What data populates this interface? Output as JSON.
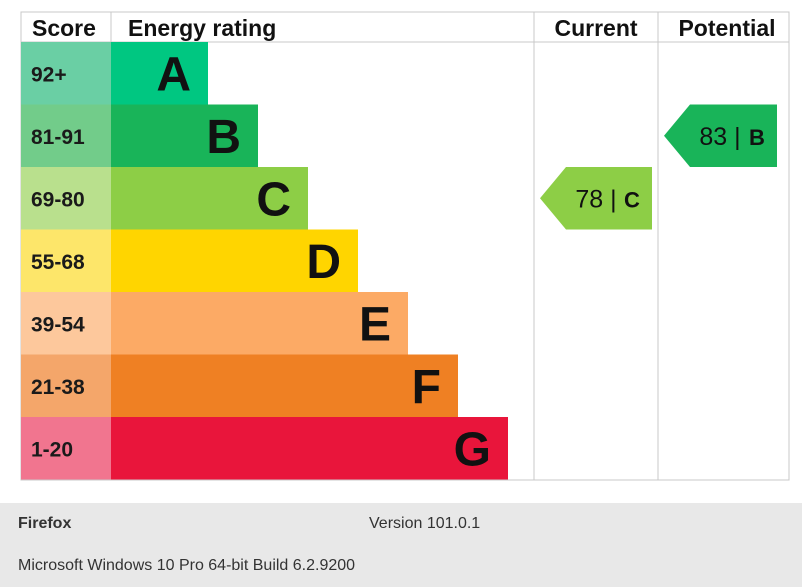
{
  "chart_data": {
    "type": "bar",
    "headers": {
      "score": "Score",
      "energy_rating": "Energy rating",
      "current": "Current",
      "potential": "Potential"
    },
    "bands": [
      {
        "range": "92+",
        "letter": "A",
        "color": "#00c781",
        "score_color": "#6acfa4"
      },
      {
        "range": "81-91",
        "letter": "B",
        "color": "#19b459",
        "score_color": "#72cc8a"
      },
      {
        "range": "69-80",
        "letter": "C",
        "color": "#8dce46",
        "score_color": "#b9e08d"
      },
      {
        "range": "55-68",
        "letter": "D",
        "color": "#ffd500",
        "score_color": "#fde66a"
      },
      {
        "range": "39-54",
        "letter": "E",
        "color": "#fcaa65",
        "score_color": "#fdc89c"
      },
      {
        "range": "21-38",
        "letter": "F",
        "color": "#ef8023",
        "score_color": "#f4a66a"
      },
      {
        "range": "1-20",
        "letter": "G",
        "color": "#e9153b",
        "score_color": "#f1758f"
      }
    ],
    "current": {
      "value": 78,
      "letter": "C",
      "label": "78 |",
      "color": "#8dce46"
    },
    "potential": {
      "value": 83,
      "letter": "B",
      "label": "83 |",
      "color": "#19b459"
    }
  },
  "footer": {
    "browser": "Firefox",
    "version": "Version 101.0.1",
    "os": "Microsoft Windows 10 Pro 64-bit Build 6.2.9200"
  }
}
